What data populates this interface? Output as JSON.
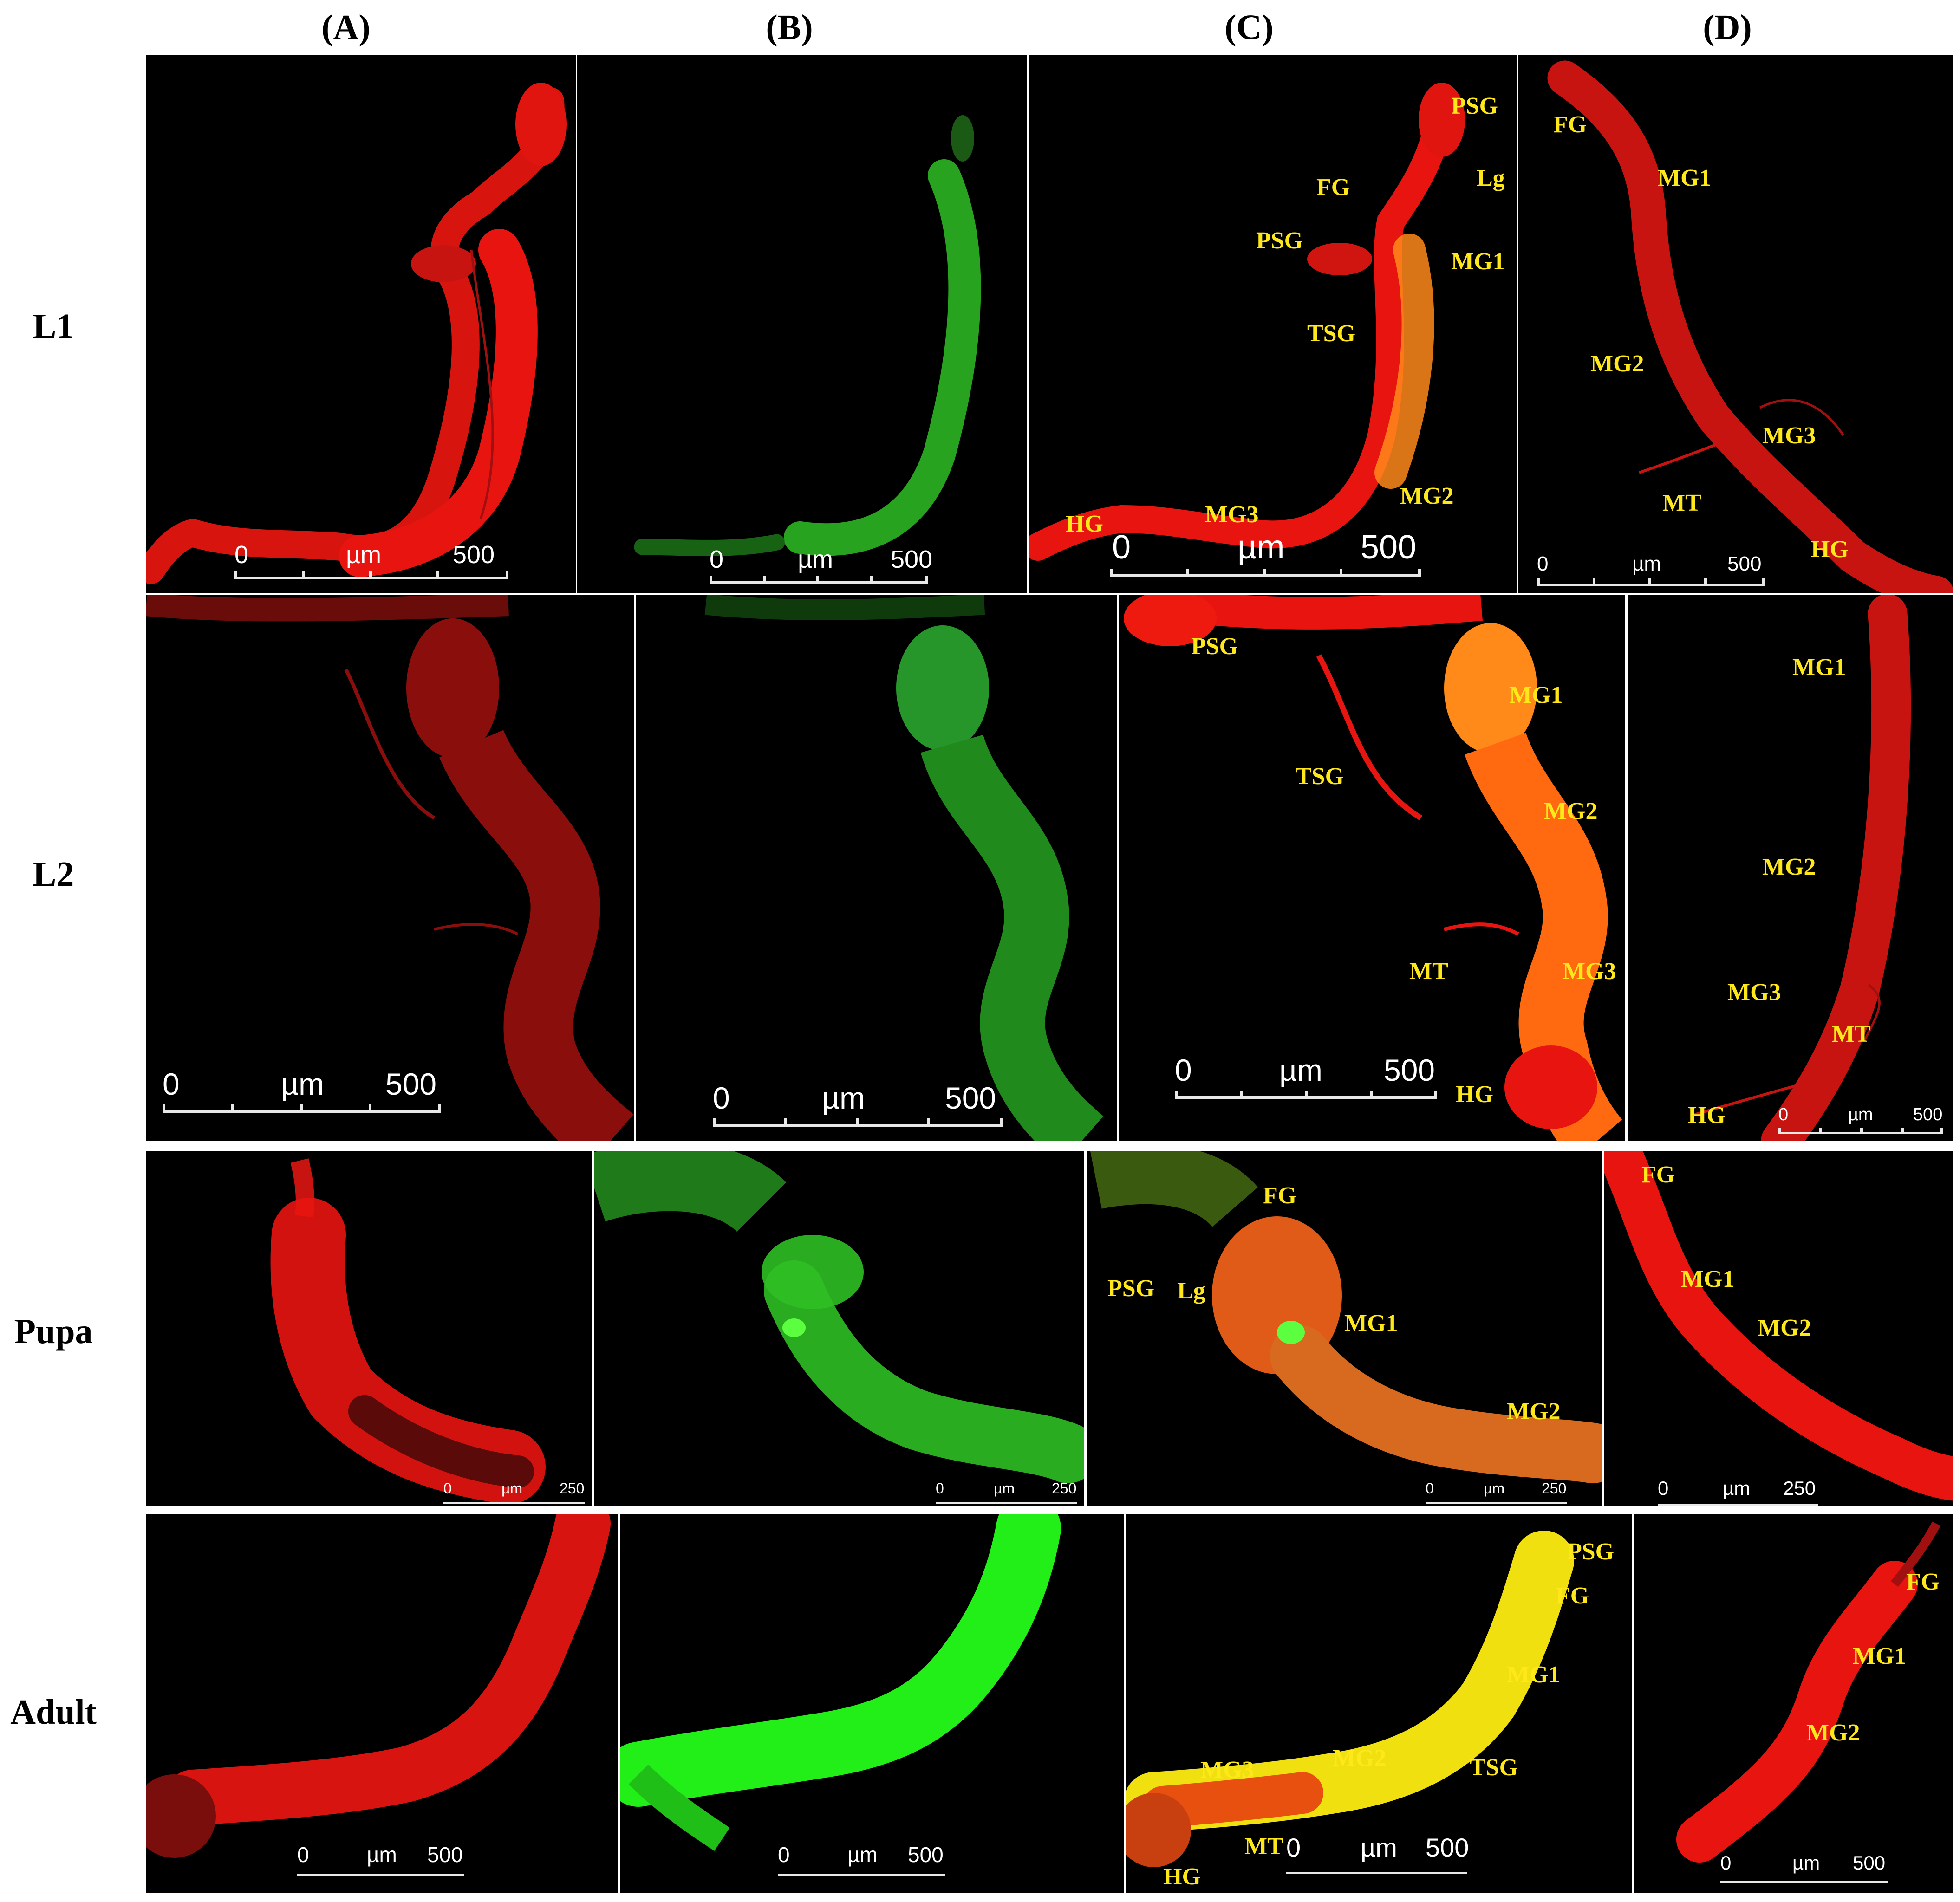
{
  "columns": [
    "(A)",
    "(B)",
    "(C)",
    "(D)"
  ],
  "rows": [
    "L1",
    "L2",
    "Pupa",
    "Adult"
  ],
  "scalebar_unit": "µm",
  "scale_values": {
    "zero": "0",
    "l1": "500",
    "l2": "500",
    "pupa": "250",
    "adult": "500"
  },
  "labels": {
    "L1C": {
      "psg1": "PSG",
      "fg": "FG",
      "lg": "Lg",
      "psg2": "PSG",
      "mg1": "MG1",
      "tsg": "TSG",
      "hg": "HG",
      "mg3": "MG3",
      "mg2": "MG2"
    },
    "L1D": {
      "fg": "FG",
      "mg1": "MG1",
      "mg2": "MG2",
      "mg3": "MG3",
      "mt": "MT",
      "hg": "HG"
    },
    "L2C": {
      "psg": "PSG",
      "mg1": "MG1",
      "tsg": "TSG",
      "mg2": "MG2",
      "mt": "MT",
      "mg3": "MG3",
      "hg": "HG"
    },
    "L2D": {
      "mg1": "MG1",
      "mg2": "MG2",
      "mg3": "MG3",
      "mt": "MT",
      "hg": "HG"
    },
    "PC": {
      "fg": "FG",
      "psg": "PSG",
      "lg": "Lg",
      "mg1": "MG1",
      "mg2": "MG2"
    },
    "PD": {
      "fg": "FG",
      "mg1": "MG1",
      "mg2": "MG2"
    },
    "AC": {
      "psg": "PSG",
      "fg": "FG",
      "mg1": "MG1",
      "mg2": "MG2",
      "tsg": "TSG",
      "mg3": "MG3",
      "mt": "MT",
      "hg": "HG"
    },
    "AD": {
      "fg": "FG",
      "mg1": "MG1",
      "mg2": "MG2"
    }
  },
  "colors": {
    "red": "#e8140f",
    "green": "#35e02a",
    "merge": "#ff6a10",
    "yellow_label": "#ffe81a"
  }
}
